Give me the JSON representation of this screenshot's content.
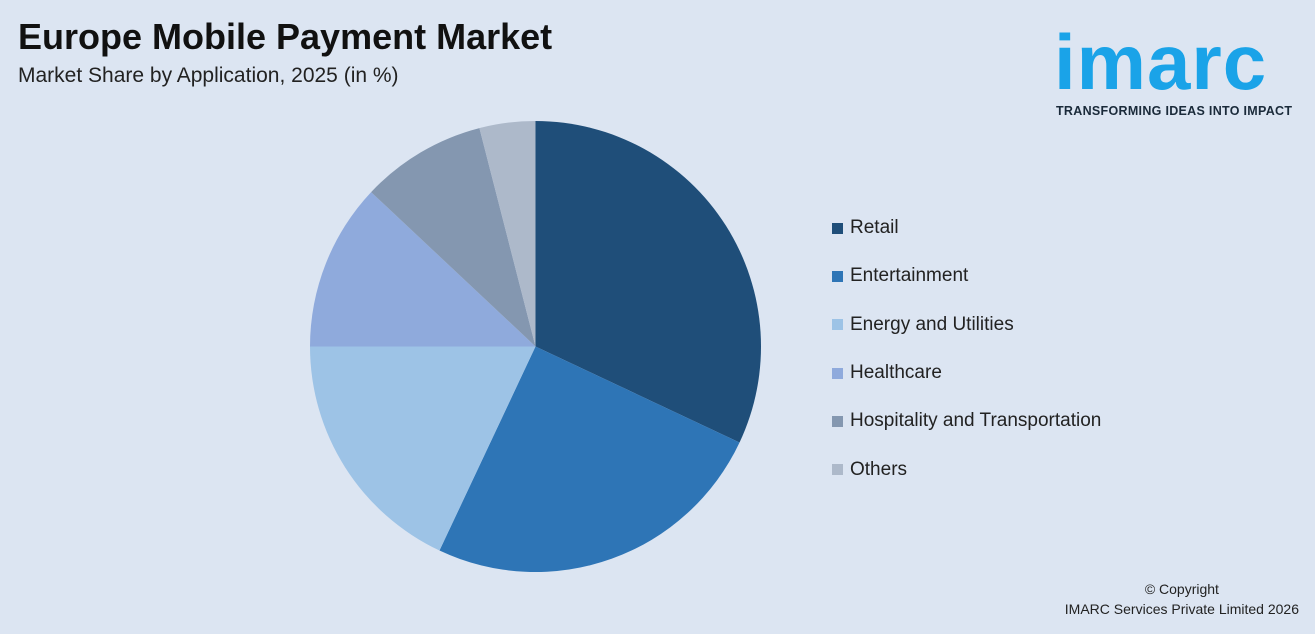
{
  "header": {
    "title": "Europe Mobile Payment Market",
    "subtitle": "Market Share by Application, 2025 (in %)"
  },
  "logo": {
    "text": "imarc",
    "tagline": "TRANSFORMING IDEAS INTO IMPACT"
  },
  "footer": {
    "copyright": "© Copyright",
    "company": "IMARC Services Private Limited 2026"
  },
  "chart_data": {
    "type": "pie",
    "title": "Europe Mobile Payment Market",
    "subtitle": "Market Share by Application, 2025 (in %)",
    "categories": [
      "Retail",
      "Entertainment",
      "Energy and Utilities",
      "Healthcare",
      "Hospitality and Transportation",
      "Others"
    ],
    "values": [
      32,
      25,
      18,
      12,
      9,
      4
    ],
    "colors": [
      "#1f4e79",
      "#2e75b6",
      "#9dc3e6",
      "#8faadc",
      "#8497b0",
      "#adb9ca"
    ],
    "start_angle": "12 o'clock",
    "direction": "clockwise",
    "legend_position": "right"
  }
}
